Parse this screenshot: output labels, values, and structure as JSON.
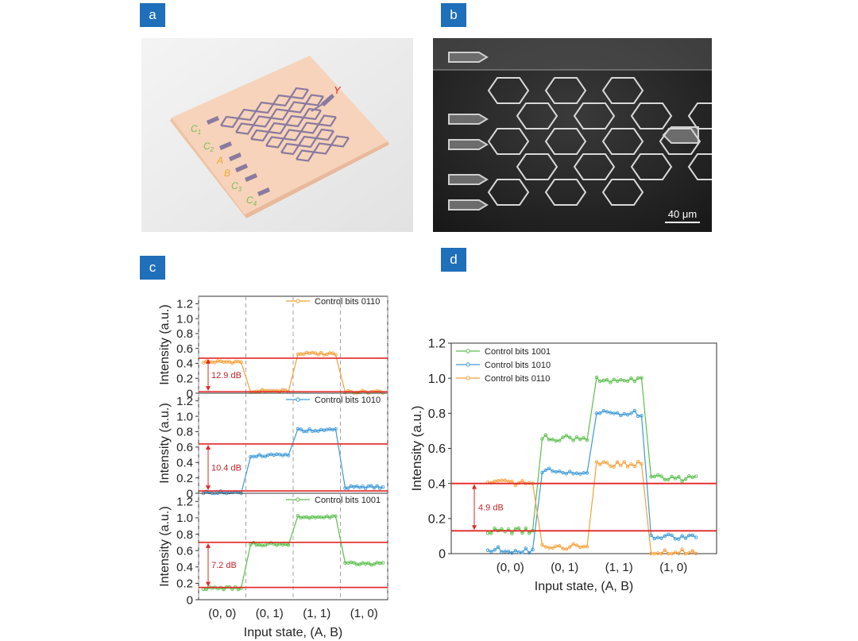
{
  "panels": {
    "a": {
      "badge": "a",
      "labels": {
        "y": "Y",
        "c1": "C",
        "c1_sub": "1",
        "c2": "C",
        "c2_sub": "2",
        "a": "A",
        "b": "B",
        "c3": "C",
        "c3_sub": "3",
        "c4": "C",
        "c4_sub": "4"
      }
    },
    "b": {
      "badge": "b",
      "scale_bar": "40 μm"
    },
    "c": {
      "badge": "c"
    },
    "d": {
      "badge": "d"
    }
  },
  "colors": {
    "orange": "#f4a13b",
    "blue": "#3f9ad6",
    "green": "#5cbf4f",
    "red": "#e32626",
    "badge": "#1f6fba",
    "chip": "#f3cfb3",
    "wave": "#8a7a9f"
  },
  "chart_data": [
    {
      "id": "c-top",
      "type": "line",
      "title": "",
      "xlabel": "",
      "ylabel": "Intensity (a.u.)",
      "ylim": [
        0,
        1.3
      ],
      "yticks": [
        "0",
        "0.2",
        "0.4",
        "0.6",
        "0.8",
        "1.0",
        "1.2"
      ],
      "series": [
        {
          "name": "Control bits 0110",
          "color": "orange",
          "values": [
            0.42,
            0.03,
            0.53,
            0.02
          ]
        }
      ],
      "red_lines": [
        0.47,
        0.02
      ],
      "annotation": "12.9 dB"
    },
    {
      "id": "c-mid",
      "type": "line",
      "title": "",
      "xlabel": "",
      "ylabel": "Intensity (a.u.)",
      "ylim": [
        0,
        1.3
      ],
      "yticks": [
        "0",
        "0.2",
        "0.4",
        "0.6",
        "0.8",
        "1.0",
        "1.2"
      ],
      "series": [
        {
          "name": "Control bits 1010",
          "color": "blue",
          "values": [
            0.01,
            0.49,
            0.82,
            0.08
          ]
        }
      ],
      "red_lines": [
        0.64,
        0.03
      ],
      "annotation": "10.4 dB"
    },
    {
      "id": "c-bot",
      "type": "line",
      "title": "",
      "xlabel": "Input state, (A, B)",
      "ylabel": "Intensity (a.u.)",
      "ylim": [
        0,
        1.3
      ],
      "yticks": [
        "0",
        "0.2",
        "0.4",
        "0.6",
        "0.8",
        "1.0",
        "1.2"
      ],
      "categories": [
        "(0, 0)",
        "(0, 1)",
        "(1, 1)",
        "(1, 0)"
      ],
      "series": [
        {
          "name": "Control bits 1001",
          "color": "green",
          "values": [
            0.14,
            0.68,
            1.01,
            0.44
          ]
        }
      ],
      "red_lines": [
        0.7,
        0.15
      ],
      "annotation": "7.2 dB"
    },
    {
      "id": "d",
      "type": "line",
      "title": "",
      "xlabel": "Input state, (A, B)",
      "ylabel": "Intensity (a.u.)",
      "ylim": [
        0,
        1.2
      ],
      "yticks": [
        "0",
        "0.2",
        "0.4",
        "0.6",
        "0.8",
        "1.0",
        "1.2"
      ],
      "categories": [
        "(0, 0)",
        "(0, 1)",
        "(1, 1)",
        "(1, 0)"
      ],
      "series": [
        {
          "name": "Control bits 1001",
          "color": "green",
          "values": [
            0.13,
            0.66,
            0.99,
            0.43
          ]
        },
        {
          "name": "Control bits 1010",
          "color": "blue",
          "values": [
            0.02,
            0.47,
            0.8,
            0.1
          ]
        },
        {
          "name": "Control bits 0110",
          "color": "orange",
          "values": [
            0.4,
            0.04,
            0.51,
            0.01
          ]
        }
      ],
      "red_lines": [
        0.4,
        0.13
      ],
      "annotation": "4.9 dB"
    }
  ]
}
